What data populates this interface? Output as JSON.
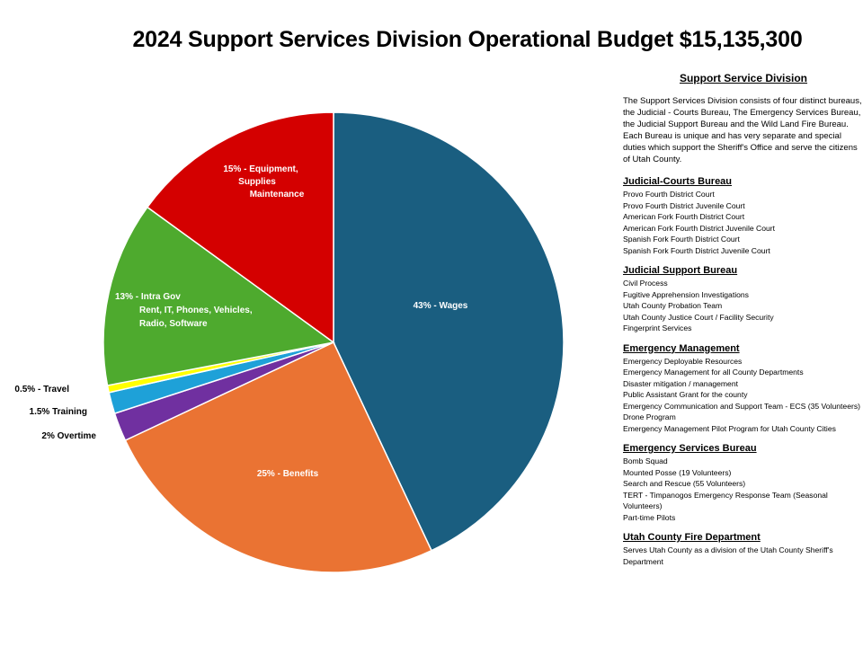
{
  "title": "2024 Support Services Division Operational Budget $15,135,300",
  "chart_data": {
    "type": "pie",
    "slices": [
      {
        "label_lines": [
          "43% - Wages"
        ],
        "value": 43,
        "color": "#1a5e80"
      },
      {
        "label_lines": [
          "25% - Benefits"
        ],
        "value": 25,
        "color": "#ea7333"
      },
      {
        "label_lines": [
          "2% Overtime"
        ],
        "value": 2,
        "color": "#7030a0"
      },
      {
        "label_lines": [
          "1.5% Training"
        ],
        "value": 1.5,
        "color": "#1ea1d8"
      },
      {
        "label_lines": [
          "0.5% - Travel"
        ],
        "value": 0.5,
        "color": "#ffff00"
      },
      {
        "label_lines": [
          "13% - Intra Gov",
          "Rent, IT, Phones, Vehicles,",
          "Radio, Software"
        ],
        "value": 13,
        "color": "#4eaa2e"
      },
      {
        "label_lines": [
          "15% - Equipment,",
          "Supplies",
          "Maintenance"
        ],
        "value": 15,
        "color": "#d40000"
      }
    ]
  },
  "sidebar": {
    "heading": "Support Service Division",
    "intro": "The Support Services Division consists of four distinct bureaus, the Judicial - Courts Bureau, The Emergency Services Bureau, the Judicial Support Bureau and the Wild Land Fire Bureau. Each Bureau is unique and has very separate and special duties which support the Sheriff's Office and serve the citizens of Utah County.",
    "sections": [
      {
        "title": "Judicial-Courts Bureau",
        "items": [
          "Provo Fourth District Court",
          "Provo Fourth District Juvenile Court",
          "American Fork Fourth District Court",
          "American Fork Fourth District Juvenile Court",
          "Spanish Fork Fourth District Court",
          "Spanish Fork Fourth District Juvenile Court"
        ]
      },
      {
        "title": "Judicial Support Bureau",
        "items": [
          "Civil Process",
          "Fugitive Apprehension Investigations",
          "Utah County Probation Team",
          "Utah County Justice Court / Facility Security",
          "Fingerprint Services"
        ]
      },
      {
        "title": "Emergency Management",
        "items": [
          "Emergency Deployable Resources",
          "Emergency Management for all County Departments",
          "Disaster mitigation / management",
          "Public Assistant Grant for the county",
          "Emergency Communication and Support Team - ECS (35 Volunteers)",
          "Drone Program",
          "Emergency Management Pilot Program for Utah County Cities"
        ]
      },
      {
        "title": "Emergency Services Bureau",
        "items": [
          "Bomb Squad",
          "Mounted Posse (19 Volunteers)",
          "Search and Rescue (55 Volunteers)",
          "TERT - Timpanogos Emergency Response Team (Seasonal Volunteers)",
          "Part-time Pilots"
        ]
      },
      {
        "title": "Utah County Fire Department",
        "items": [
          "Serves Utah County as a division of the Utah County Sheriff's Department"
        ]
      }
    ]
  }
}
